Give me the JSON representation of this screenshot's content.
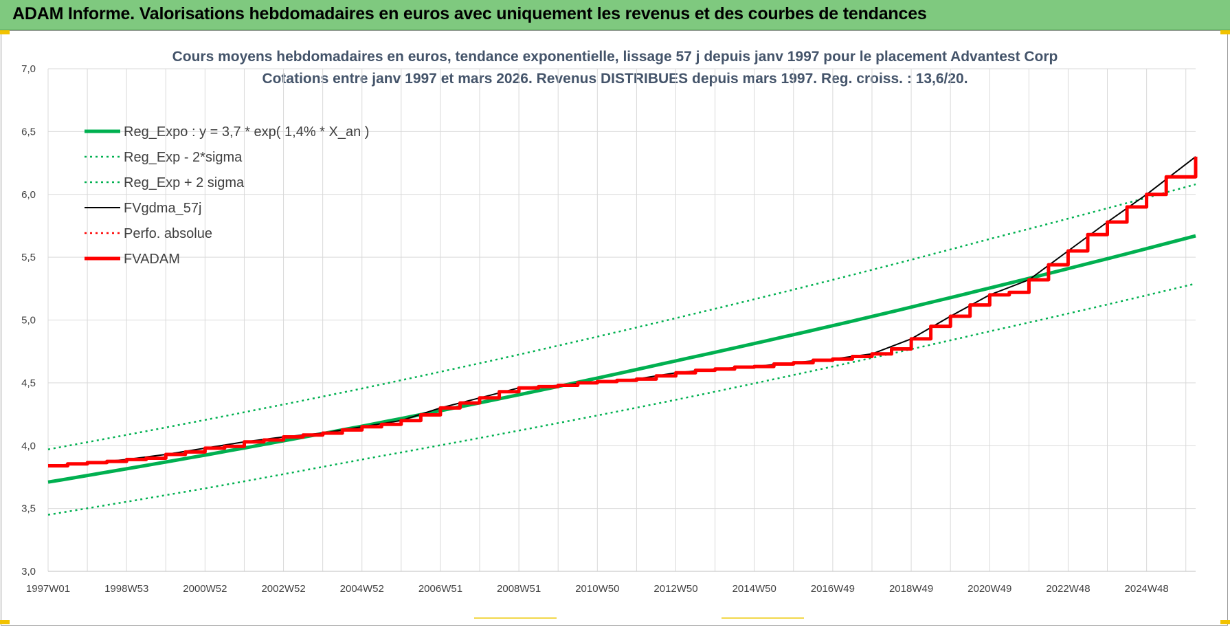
{
  "header": {
    "title": "ADAM Informe. Valorisations hebdomadaires en euros avec uniquement les revenus et des courbes de tendances"
  },
  "chart_data": {
    "type": "line",
    "title": "Cours moyens hebdomadaires en euros, tendance exponentielle, lissage 57 j depuis janv 1997  pour le placement Advantest Corp",
    "subtitle": "Cotations entre janv 1997 et mars 2026. Revenus DISTRIBUES depuis mars 1997. Reg. croiss. : 13,6/20.",
    "xlabel": "",
    "ylabel": "",
    "ylim": [
      3.0,
      7.0
    ],
    "xlim": [
      1997.0,
      2026.25
    ],
    "grid": true,
    "legend_position": "top-left",
    "y_ticks": [
      "3,0",
      "3,5",
      "4,0",
      "4,5",
      "5,0",
      "5,5",
      "6,0",
      "6,5",
      "7,0"
    ],
    "y_tick_values": [
      3.0,
      3.5,
      4.0,
      4.5,
      5.0,
      5.5,
      6.0,
      6.5,
      7.0
    ],
    "x_ticks": [
      "1997W01",
      "1998W53",
      "2000W52",
      "2002W52",
      "2004W52",
      "2006W51",
      "2008W51",
      "2010W50",
      "2012W50",
      "2014W50",
      "2016W49",
      "2018W49",
      "2020W49",
      "2022W48",
      "2024W48"
    ],
    "x_tick_values": [
      1997.0,
      1999.0,
      2001.0,
      2003.0,
      2005.0,
      2007.0,
      2009.0,
      2011.0,
      2013.0,
      2015.0,
      2017.0,
      2019.0,
      2021.0,
      2023.0,
      2025.0
    ],
    "colors": {
      "trend": "#00b050",
      "actual": "#ff0000",
      "smooth": "#000000"
    },
    "series": [
      {
        "name": "Reg_Expo : y = 3,7 * exp( 1,4% *  X_an )",
        "style": "solid-thick",
        "color": "#00b050",
        "x": [
          1997.0,
          2001.0,
          2005.0,
          2009.0,
          2013.0,
          2017.0,
          2021.0,
          2026.25
        ],
        "values": [
          3.71,
          3.925,
          4.155,
          4.405,
          4.675,
          4.955,
          5.255,
          5.67
        ]
      },
      {
        "name": "Reg_Exp - 2*sigma",
        "style": "dotted",
        "color": "#00b050",
        "x": [
          1997.0,
          2001.0,
          2005.0,
          2009.0,
          2013.0,
          2017.0,
          2021.0,
          2026.25
        ],
        "values": [
          3.45,
          3.66,
          3.89,
          4.12,
          4.365,
          4.63,
          4.91,
          5.29
        ]
      },
      {
        "name": "Reg_Exp + 2 sigma",
        "style": "dotted",
        "color": "#00b050",
        "x": [
          1997.0,
          2001.0,
          2005.0,
          2009.0,
          2013.0,
          2017.0,
          2021.0,
          2026.25
        ],
        "values": [
          3.97,
          4.205,
          4.455,
          4.725,
          5.015,
          5.32,
          5.645,
          6.08
        ]
      },
      {
        "name": "FVgdma_57j",
        "style": "solid-thin",
        "color": "#000000",
        "x": [
          1997.0,
          1998.0,
          1999.0,
          2000.0,
          2001.0,
          2002.0,
          2003.0,
          2004.0,
          2005.0,
          2006.0,
          2007.0,
          2008.0,
          2009.0,
          2010.0,
          2011.0,
          2012.0,
          2013.0,
          2014.0,
          2015.0,
          2016.0,
          2017.0,
          2018.0,
          2019.0,
          2020.0,
          2021.0,
          2022.0,
          2023.0,
          2024.0,
          2025.0,
          2026.25
        ],
        "values": [
          3.84,
          3.86,
          3.89,
          3.93,
          3.98,
          4.03,
          4.07,
          4.1,
          4.15,
          4.2,
          4.3,
          4.38,
          4.46,
          4.48,
          4.51,
          4.53,
          4.58,
          4.61,
          4.63,
          4.66,
          4.69,
          4.73,
          4.85,
          5.03,
          5.2,
          5.32,
          5.55,
          5.78,
          6.0,
          6.3
        ]
      },
      {
        "name": "Perfo. absolue",
        "style": "dotted",
        "color": "#ff0000",
        "x": [],
        "values": []
      },
      {
        "name": "FVADAM",
        "style": "solid-thick-steps",
        "color": "#ff0000",
        "x": [
          1997.0,
          1997.5,
          1998.0,
          1998.5,
          1999.0,
          1999.5,
          2000.0,
          2000.5,
          2001.0,
          2001.5,
          2002.0,
          2002.5,
          2003.0,
          2003.5,
          2004.0,
          2004.5,
          2005.0,
          2005.5,
          2006.0,
          2006.5,
          2007.0,
          2007.5,
          2008.0,
          2008.5,
          2009.0,
          2009.5,
          2010.0,
          2010.5,
          2011.0,
          2011.5,
          2012.0,
          2012.5,
          2013.0,
          2013.5,
          2014.0,
          2014.5,
          2015.0,
          2015.5,
          2016.0,
          2016.5,
          2017.0,
          2017.5,
          2018.0,
          2018.5,
          2019.0,
          2019.5,
          2020.0,
          2020.5,
          2021.0,
          2021.5,
          2022.0,
          2022.5,
          2023.0,
          2023.5,
          2024.0,
          2024.5,
          2025.0,
          2025.5,
          2026.25
        ],
        "values": [
          3.84,
          3.855,
          3.865,
          3.875,
          3.89,
          3.9,
          3.93,
          3.95,
          3.98,
          3.995,
          4.03,
          4.045,
          4.07,
          4.085,
          4.1,
          4.125,
          4.15,
          4.17,
          4.2,
          4.245,
          4.3,
          4.34,
          4.38,
          4.43,
          4.46,
          4.47,
          4.48,
          4.5,
          4.51,
          4.52,
          4.53,
          4.555,
          4.58,
          4.6,
          4.61,
          4.625,
          4.63,
          4.65,
          4.66,
          4.68,
          4.69,
          4.71,
          4.73,
          4.77,
          4.85,
          4.95,
          5.03,
          5.12,
          5.2,
          5.22,
          5.32,
          5.44,
          5.55,
          5.68,
          5.78,
          5.9,
          6.0,
          6.14,
          6.3
        ]
      }
    ]
  }
}
